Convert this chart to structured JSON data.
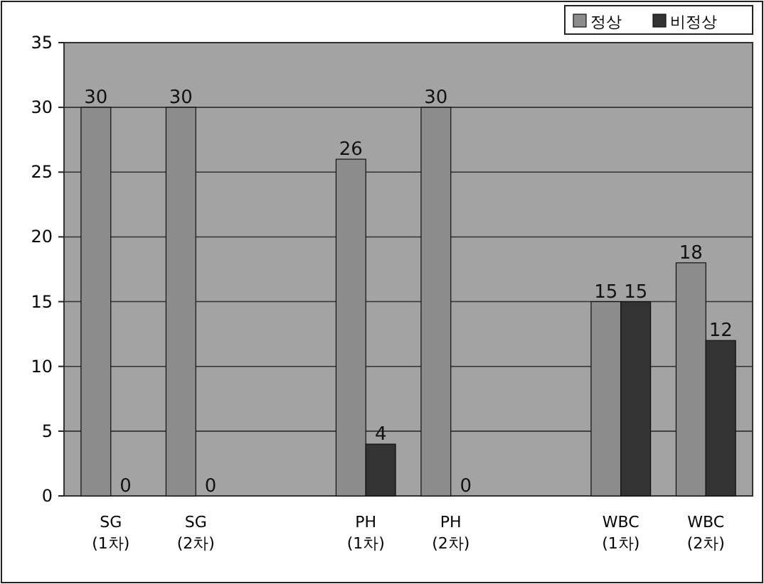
{
  "chart_data": {
    "type": "bar",
    "categories": [
      "SG (1차)",
      "SG (2차)",
      null,
      "PH (1차)",
      "PH (2차)",
      null,
      "WBC (1차)",
      "WBC (2차)"
    ],
    "series": [
      {
        "name": "정상",
        "color": "#8c8c8c",
        "values": [
          30,
          30,
          null,
          26,
          30,
          null,
          15,
          18
        ]
      },
      {
        "name": "비정상",
        "color": "#333333",
        "values": [
          0,
          0,
          null,
          4,
          0,
          null,
          15,
          12
        ]
      }
    ],
    "ylim": [
      0,
      35
    ],
    "yticks": [
      0,
      5,
      10,
      15,
      20,
      25,
      30,
      35
    ],
    "grid": "y",
    "legend": "top right",
    "data_labels": true
  }
}
